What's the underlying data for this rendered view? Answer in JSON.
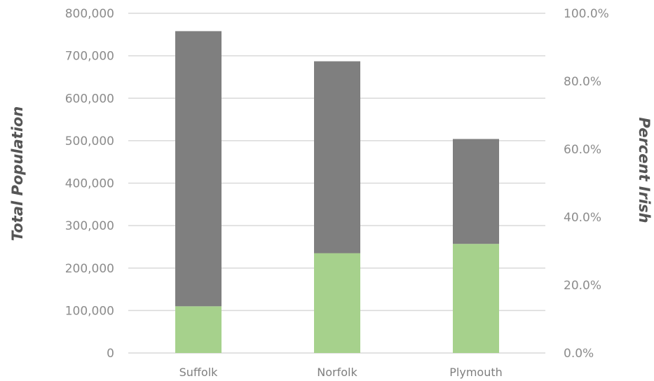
{
  "chart_data": {
    "type": "bar",
    "stacked": true,
    "categories": [
      "Suffolk",
      "Norfolk",
      "Plymouth"
    ],
    "series": [
      {
        "values": [
          110000,
          235000,
          257000
        ],
        "color": "#a6d18c"
      },
      {
        "values": [
          648000,
          452000,
          247000
        ],
        "color": "#7f7f7f"
      }
    ],
    "totals": [
      758000,
      687000,
      504000
    ],
    "ylabel": "Total Population",
    "y2label": "Percent Irish",
    "ylim": [
      0,
      800000
    ],
    "y2lim": [
      0,
      1.0
    ],
    "yticks": [
      "0",
      "100,000",
      "200,000",
      "300,000",
      "400,000",
      "500,000",
      "600,000",
      "700,000",
      "800,000"
    ],
    "y2ticks": [
      "0.0%",
      "20.0%",
      "40.0%",
      "60.0%",
      "80.0%",
      "100.0%"
    ],
    "grid": true,
    "legend": "none"
  }
}
